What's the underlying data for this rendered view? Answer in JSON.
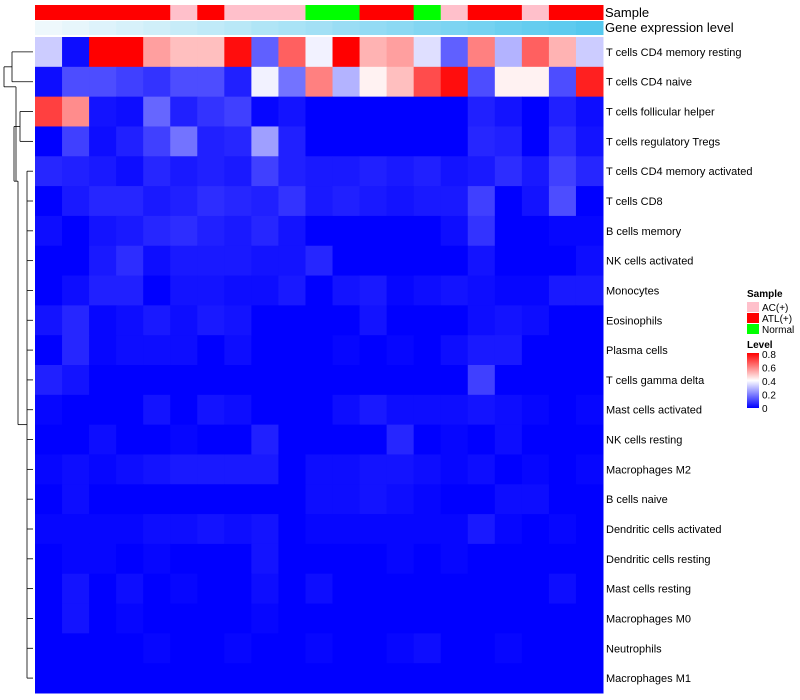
{
  "chart_data": {
    "type": "heatmap",
    "title": "",
    "annotation_titles": {
      "sample": "Sample",
      "gene_level": "Gene expression level"
    },
    "sample_annotation": [
      "ATL(+)",
      "ATL(+)",
      "ATL(+)",
      "ATL(+)",
      "ATL(+)",
      "AC(+)",
      "ATL(+)",
      "AC(+)",
      "AC(+)",
      "AC(+)",
      "Normal",
      "Normal",
      "ATL(+)",
      "ATL(+)",
      "Normal",
      "AC(+)",
      "ATL(+)",
      "ATL(+)",
      "AC(+)",
      "ATL(+)",
      "ATL(+)"
    ],
    "gene_level_annotation": [
      0.05,
      0.08,
      0.12,
      0.15,
      0.18,
      0.22,
      0.25,
      0.28,
      0.32,
      0.35,
      0.38,
      0.42,
      0.45,
      0.48,
      0.52,
      0.55,
      0.58,
      0.62,
      0.65,
      0.68,
      0.72
    ],
    "rows": [
      "T cells CD4 memory resting",
      "T cells CD4 naive",
      "T cells follicular helper",
      "T cells regulatory  Tregs",
      "T cells CD4 memory activated",
      "T cells CD8",
      "B cells memory",
      "NK cells activated",
      "Monocytes",
      "Eosinophils",
      "Plasma cells",
      "T cells gamma delta",
      "Mast cells activated",
      "NK cells resting",
      "Macrophages M2",
      "B cells naive",
      "Dendritic cells activated",
      "Dendritic cells resting",
      "Mast cells resting",
      "Macrophages M0",
      "Neutrophils",
      "Macrophages M1"
    ],
    "values": [
      [
        0.32,
        0.02,
        0.8,
        0.8,
        0.55,
        0.5,
        0.5,
        0.78,
        0.15,
        0.65,
        0.38,
        0.8,
        0.52,
        0.55,
        0.35,
        0.15,
        0.6,
        0.28,
        0.65,
        0.52,
        0.32
      ],
      [
        0.02,
        0.12,
        0.12,
        0.1,
        0.08,
        0.12,
        0.12,
        0.05,
        0.38,
        0.18,
        0.6,
        0.28,
        0.42,
        0.5,
        0.68,
        0.78,
        0.12,
        0.42,
        0.42,
        0.12,
        0.75
      ],
      [
        0.7,
        0.58,
        0.03,
        0.02,
        0.16,
        0.05,
        0.08,
        0.1,
        0.01,
        0.03,
        0.0,
        0.0,
        0.0,
        0.0,
        0.0,
        0.0,
        0.05,
        0.03,
        0.0,
        0.05,
        0.02
      ],
      [
        0.0,
        0.1,
        0.02,
        0.05,
        0.1,
        0.18,
        0.05,
        0.06,
        0.25,
        0.05,
        0.0,
        0.0,
        0.0,
        0.0,
        0.0,
        0.0,
        0.06,
        0.05,
        0.0,
        0.07,
        0.03
      ],
      [
        0.06,
        0.05,
        0.04,
        0.02,
        0.06,
        0.04,
        0.05,
        0.04,
        0.1,
        0.05,
        0.04,
        0.04,
        0.05,
        0.04,
        0.05,
        0.03,
        0.04,
        0.07,
        0.04,
        0.1,
        0.06
      ],
      [
        0.0,
        0.04,
        0.06,
        0.06,
        0.04,
        0.05,
        0.07,
        0.06,
        0.05,
        0.08,
        0.04,
        0.05,
        0.04,
        0.03,
        0.04,
        0.04,
        0.1,
        0.0,
        0.03,
        0.12,
        0.0
      ],
      [
        0.02,
        0.0,
        0.03,
        0.04,
        0.06,
        0.07,
        0.05,
        0.04,
        0.06,
        0.03,
        0.0,
        0.0,
        0.0,
        0.0,
        0.0,
        0.02,
        0.08,
        0.0,
        0.0,
        0.01,
        0.01
      ],
      [
        0.0,
        0.0,
        0.04,
        0.07,
        0.02,
        0.04,
        0.04,
        0.04,
        0.03,
        0.03,
        0.06,
        0.0,
        0.0,
        0.0,
        0.0,
        0.0,
        0.03,
        0.0,
        0.0,
        0.0,
        0.02
      ],
      [
        0.0,
        0.02,
        0.05,
        0.05,
        0.0,
        0.03,
        0.03,
        0.02,
        0.02,
        0.04,
        0.0,
        0.03,
        0.04,
        0.01,
        0.02,
        0.03,
        0.02,
        0.01,
        0.01,
        0.04,
        0.04
      ],
      [
        0.03,
        0.06,
        0.01,
        0.02,
        0.04,
        0.02,
        0.04,
        0.03,
        0.0,
        0.0,
        0.0,
        0.0,
        0.03,
        0.0,
        0.0,
        0.0,
        0.02,
        0.03,
        0.02,
        0.0,
        0.0
      ],
      [
        0.0,
        0.06,
        0.01,
        0.02,
        0.02,
        0.02,
        0.0,
        0.02,
        0.0,
        0.0,
        0.0,
        0.01,
        0.0,
        0.01,
        0.0,
        0.02,
        0.04,
        0.04,
        0.0,
        0.0,
        0.0
      ],
      [
        0.05,
        0.03,
        0.0,
        0.0,
        0.0,
        0.0,
        0.0,
        0.0,
        0.0,
        0.0,
        0.0,
        0.0,
        0.0,
        0.0,
        0.0,
        0.0,
        0.1,
        0.0,
        0.0,
        0.0,
        0.0
      ],
      [
        0.01,
        0.0,
        0.0,
        0.0,
        0.03,
        0.0,
        0.03,
        0.02,
        0.0,
        0.0,
        0.0,
        0.02,
        0.04,
        0.02,
        0.02,
        0.02,
        0.03,
        0.02,
        0.01,
        0.0,
        0.01
      ],
      [
        0.0,
        0.0,
        0.02,
        0.0,
        0.0,
        0.01,
        0.0,
        0.0,
        0.05,
        0.0,
        0.0,
        0.0,
        0.0,
        0.06,
        0.0,
        0.01,
        0.0,
        0.02,
        0.0,
        0.0,
        0.0
      ],
      [
        0.01,
        0.02,
        0.01,
        0.02,
        0.03,
        0.04,
        0.04,
        0.04,
        0.04,
        0.0,
        0.02,
        0.02,
        0.03,
        0.03,
        0.02,
        0.01,
        0.02,
        0.0,
        0.01,
        0.0,
        0.01
      ],
      [
        0.0,
        0.02,
        0.0,
        0.0,
        0.0,
        0.0,
        0.0,
        0.0,
        0.0,
        0.0,
        0.02,
        0.02,
        0.03,
        0.02,
        0.01,
        0.0,
        0.0,
        0.02,
        0.02,
        0.0,
        0.0
      ],
      [
        0.01,
        0.01,
        0.01,
        0.01,
        0.02,
        0.02,
        0.03,
        0.02,
        0.03,
        0.0,
        0.01,
        0.01,
        0.01,
        0.01,
        0.01,
        0.01,
        0.04,
        0.01,
        0.0,
        0.01,
        0.0
      ],
      [
        0.0,
        0.01,
        0.01,
        0.0,
        0.01,
        0.0,
        0.0,
        0.0,
        0.03,
        0.0,
        0.0,
        0.0,
        0.0,
        0.01,
        0.0,
        0.01,
        0.0,
        0.0,
        0.0,
        0.0,
        0.0
      ],
      [
        0.0,
        0.03,
        0.0,
        0.02,
        0.0,
        0.01,
        0.0,
        0.0,
        0.02,
        0.0,
        0.02,
        0.0,
        0.0,
        0.0,
        0.0,
        0.0,
        0.0,
        0.0,
        0.0,
        0.02,
        0.0
      ],
      [
        0.0,
        0.03,
        0.0,
        0.01,
        0.0,
        0.0,
        0.0,
        0.0,
        0.01,
        0.0,
        0.0,
        0.0,
        0.0,
        0.0,
        0.0,
        0.0,
        0.0,
        0.0,
        0.0,
        0.0,
        0.0
      ],
      [
        0.0,
        0.0,
        0.0,
        0.0,
        0.01,
        0.0,
        0.0,
        0.01,
        0.0,
        0.0,
        0.01,
        0.0,
        0.0,
        0.01,
        0.02,
        0.0,
        0.0,
        0.01,
        0.0,
        0.0,
        0.0
      ],
      [
        0.0,
        0.0,
        0.0,
        0.0,
        0.0,
        0.0,
        0.0,
        0.0,
        0.0,
        0.0,
        0.0,
        0.0,
        0.0,
        0.0,
        0.0,
        0.0,
        0.0,
        0.0,
        0.0,
        0.0,
        0.0
      ]
    ],
    "color_scale": {
      "min": 0,
      "mid": 0.4,
      "max": 0.8,
      "low": "#0000ff",
      "midColor": "#ffffff",
      "high": "#ff0000"
    },
    "legend": {
      "sample_title": "Sample",
      "sample_entries": [
        {
          "label": "AC(+)",
          "color": "#ffc0cb"
        },
        {
          "label": "ATL(+)",
          "color": "#ff0000"
        },
        {
          "label": "Normal",
          "color": "#00ff00"
        }
      ],
      "level_title": "Level",
      "level_ticks": [
        "0.8",
        "0.6",
        "0.4",
        "0.2",
        "0"
      ],
      "placement": "right"
    },
    "gene_level_colors": {
      "low": "#eef8fc",
      "high": "#55c8ee"
    }
  }
}
